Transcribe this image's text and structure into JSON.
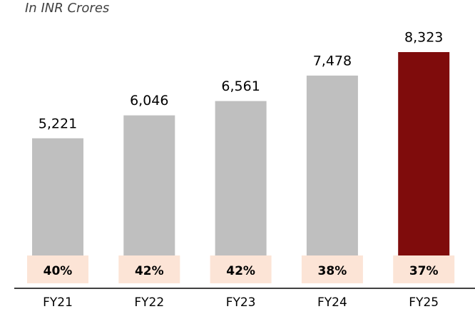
{
  "chart_data": {
    "type": "bar",
    "subtitle": "In INR Crores",
    "categories": [
      "FY21",
      "FY22",
      "FY23",
      "FY24",
      "FY25"
    ],
    "values": [
      5221,
      6046,
      6561,
      7478,
      8323
    ],
    "value_labels": [
      "5,221",
      "6,046",
      "6,561",
      "7,478",
      "8,323"
    ],
    "colors": [
      "#bfbfbf",
      "#bfbfbf",
      "#bfbfbf",
      "#bfbfbf",
      "#7f0c0c"
    ],
    "shares": [
      40,
      42,
      42,
      38,
      37
    ],
    "share_labels": [
      "40%",
      "42%",
      "42%",
      "38%",
      "37%"
    ],
    "share_box_color": "#fce4d6"
  }
}
